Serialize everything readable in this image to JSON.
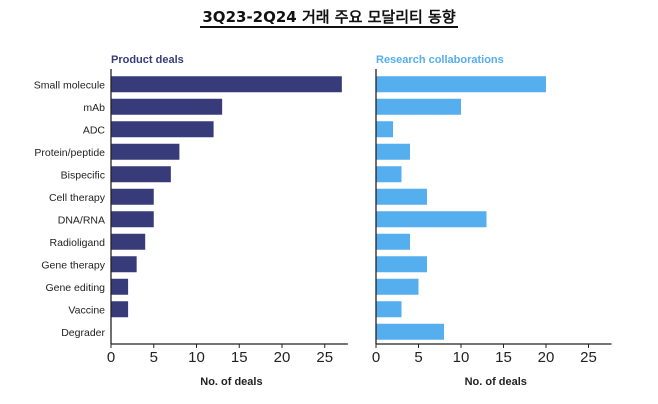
{
  "page": {
    "title": "3Q23-2Q24 거래 주요 모달리티 동향"
  },
  "colors": {
    "product": "#373b7a",
    "research": "#55aeee",
    "axis": "#222222",
    "text": "#222222"
  },
  "chart_data": [
    {
      "type": "bar",
      "orientation": "horizontal",
      "title": "Product deals",
      "xlabel": "No. of deals",
      "ylabel": "",
      "xlim": [
        0,
        27
      ],
      "xticks": [
        0,
        5,
        10,
        15,
        20,
        25
      ],
      "grid": false,
      "categories": [
        "Small molecule",
        "mAb",
        "ADC",
        "Protein/peptide",
        "Bispecific",
        "Cell therapy",
        "DNA/RNA",
        "Radioligand",
        "Gene therapy",
        "Gene editing",
        "Vaccine",
        "Degrader"
      ],
      "values": [
        27,
        13,
        12,
        8,
        7,
        5,
        5,
        4,
        3,
        2,
        2,
        0
      ]
    },
    {
      "type": "bar",
      "orientation": "horizontal",
      "title": "Research collaborations",
      "xlabel": "No. of deals",
      "ylabel": "",
      "xlim": [
        0,
        27
      ],
      "xticks": [
        0,
        5,
        10,
        15,
        20,
        25
      ],
      "grid": false,
      "categories": [
        "Small molecule",
        "mAb",
        "ADC",
        "Protein/peptide",
        "Bispecific",
        "Cell therapy",
        "DNA/RNA",
        "Radioligand",
        "Gene therapy",
        "Gene editing",
        "Vaccine",
        "Degrader"
      ],
      "values": [
        20,
        10,
        2,
        4,
        3,
        6,
        13,
        4,
        6,
        5,
        3,
        8
      ]
    }
  ]
}
